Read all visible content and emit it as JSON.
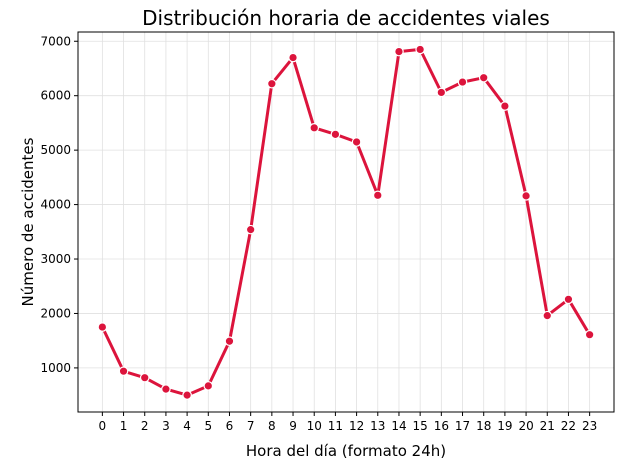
{
  "chart_data": {
    "type": "line",
    "title": "Distribución horaria de accidentes viales",
    "xlabel": "Hora del día (formato 24h)",
    "ylabel": "Número de accidentes",
    "categories": [
      "0",
      "1",
      "2",
      "3",
      "4",
      "5",
      "6",
      "7",
      "8",
      "9",
      "10",
      "11",
      "12",
      "13",
      "14",
      "15",
      "16",
      "17",
      "18",
      "19",
      "20",
      "21",
      "22",
      "23"
    ],
    "x": [
      0,
      1,
      2,
      3,
      4,
      5,
      6,
      7,
      8,
      9,
      10,
      11,
      12,
      13,
      14,
      15,
      16,
      17,
      18,
      19,
      20,
      21,
      22,
      23
    ],
    "values": [
      1750,
      940,
      820,
      610,
      500,
      670,
      1490,
      3540,
      6220,
      6700,
      5410,
      5290,
      5150,
      4170,
      6810,
      6850,
      6060,
      6250,
      6330,
      5810,
      4160,
      1960,
      2260,
      1610
    ],
    "yticks": [
      1000,
      2000,
      3000,
      4000,
      5000,
      6000,
      7000
    ],
    "xlim": [
      -1.15,
      24.15
    ],
    "ylim": [
      190,
      7170
    ],
    "grid": true,
    "line_color": "#dc143c",
    "marker_edge_color": "#ffffff",
    "grid_color": "#e0e0e0"
  }
}
